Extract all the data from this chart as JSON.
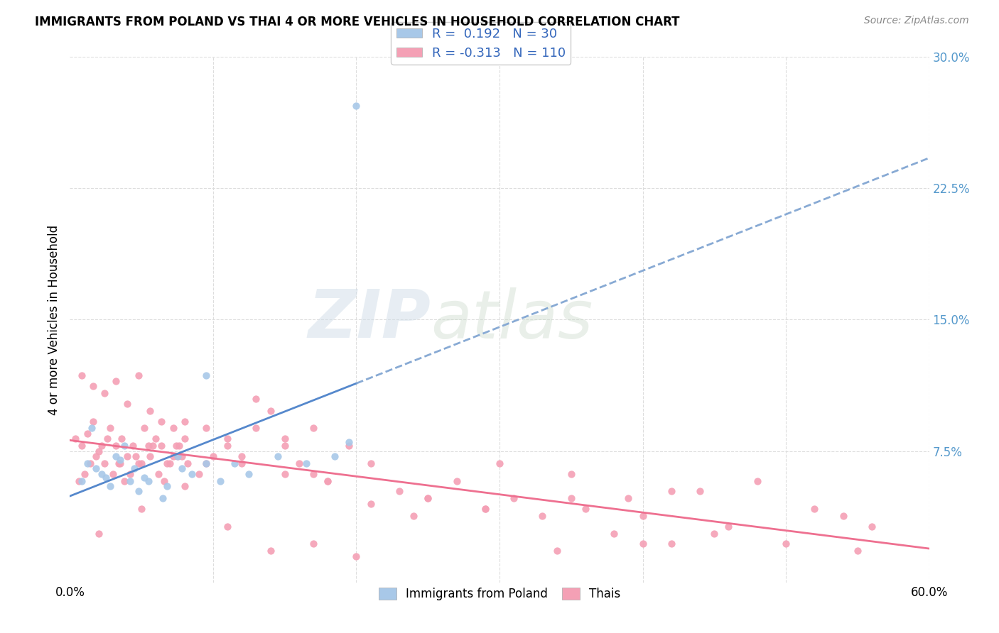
{
  "title": "IMMIGRANTS FROM POLAND VS THAI 4 OR MORE VEHICLES IN HOUSEHOLD CORRELATION CHART",
  "source": "Source: ZipAtlas.com",
  "ylabel": "4 or more Vehicles in Household",
  "xlim": [
    0.0,
    0.6
  ],
  "ylim": [
    0.0,
    0.3
  ],
  "xtick_positions": [
    0.0,
    0.1,
    0.2,
    0.3,
    0.4,
    0.5,
    0.6
  ],
  "xtick_labels": [
    "0.0%",
    "",
    "",
    "",
    "",
    "",
    "60.0%"
  ],
  "yticks_right": [
    0.0,
    0.075,
    0.15,
    0.225,
    0.3
  ],
  "ytick_right_labels": [
    "",
    "7.5%",
    "15.0%",
    "22.5%",
    "30.0%"
  ],
  "poland_R": 0.192,
  "poland_N": 30,
  "thai_R": -0.313,
  "thai_N": 110,
  "poland_color": "#a8c8e8",
  "thai_color": "#f4a0b5",
  "poland_line_color": "#5588cc",
  "thai_line_color": "#ee7090",
  "poland_dash_color": "#88aad4",
  "background_color": "#ffffff",
  "grid_color": "#dddddd",
  "poland_scatter_x": [
    0.008,
    0.012,
    0.018,
    0.022,
    0.028,
    0.032,
    0.038,
    0.042,
    0.048,
    0.015,
    0.025,
    0.035,
    0.045,
    0.055,
    0.065,
    0.075,
    0.085,
    0.095,
    0.105,
    0.115,
    0.125,
    0.145,
    0.165,
    0.185,
    0.195,
    0.052,
    0.068,
    0.078,
    0.095,
    0.2
  ],
  "poland_scatter_y": [
    0.058,
    0.068,
    0.065,
    0.062,
    0.055,
    0.072,
    0.078,
    0.058,
    0.052,
    0.088,
    0.06,
    0.07,
    0.065,
    0.058,
    0.048,
    0.072,
    0.062,
    0.068,
    0.058,
    0.068,
    0.062,
    0.072,
    0.068,
    0.072,
    0.08,
    0.06,
    0.055,
    0.065,
    0.118,
    0.272
  ],
  "thai_scatter_x": [
    0.004,
    0.008,
    0.012,
    0.016,
    0.02,
    0.024,
    0.028,
    0.032,
    0.036,
    0.04,
    0.044,
    0.048,
    0.052,
    0.056,
    0.06,
    0.064,
    0.068,
    0.072,
    0.076,
    0.08,
    0.006,
    0.01,
    0.014,
    0.018,
    0.022,
    0.026,
    0.03,
    0.034,
    0.038,
    0.042,
    0.046,
    0.05,
    0.058,
    0.062,
    0.066,
    0.07,
    0.074,
    0.078,
    0.082,
    0.09,
    0.1,
    0.11,
    0.12,
    0.13,
    0.14,
    0.15,
    0.16,
    0.17,
    0.18,
    0.195,
    0.21,
    0.23,
    0.25,
    0.27,
    0.29,
    0.31,
    0.33,
    0.36,
    0.39,
    0.42,
    0.008,
    0.016,
    0.024,
    0.032,
    0.04,
    0.048,
    0.056,
    0.064,
    0.072,
    0.08,
    0.095,
    0.11,
    0.13,
    0.15,
    0.17,
    0.035,
    0.055,
    0.075,
    0.095,
    0.12,
    0.15,
    0.18,
    0.21,
    0.25,
    0.29,
    0.35,
    0.4,
    0.44,
    0.48,
    0.52,
    0.54,
    0.56,
    0.3,
    0.35,
    0.4,
    0.45,
    0.5,
    0.55,
    0.46,
    0.42,
    0.38,
    0.34,
    0.02,
    0.05,
    0.08,
    0.11,
    0.14,
    0.17,
    0.2,
    0.24
  ],
  "thai_scatter_y": [
    0.082,
    0.078,
    0.085,
    0.092,
    0.075,
    0.068,
    0.088,
    0.078,
    0.082,
    0.072,
    0.078,
    0.068,
    0.088,
    0.072,
    0.082,
    0.078,
    0.068,
    0.072,
    0.078,
    0.082,
    0.058,
    0.062,
    0.068,
    0.072,
    0.078,
    0.082,
    0.062,
    0.068,
    0.058,
    0.062,
    0.072,
    0.068,
    0.078,
    0.062,
    0.058,
    0.068,
    0.078,
    0.072,
    0.068,
    0.062,
    0.072,
    0.078,
    0.068,
    0.105,
    0.098,
    0.082,
    0.068,
    0.062,
    0.058,
    0.078,
    0.045,
    0.052,
    0.048,
    0.058,
    0.042,
    0.048,
    0.038,
    0.042,
    0.048,
    0.052,
    0.118,
    0.112,
    0.108,
    0.115,
    0.102,
    0.118,
    0.098,
    0.092,
    0.088,
    0.092,
    0.088,
    0.082,
    0.088,
    0.078,
    0.088,
    0.068,
    0.078,
    0.072,
    0.068,
    0.072,
    0.062,
    0.058,
    0.068,
    0.048,
    0.042,
    0.048,
    0.038,
    0.052,
    0.058,
    0.042,
    0.038,
    0.032,
    0.068,
    0.062,
    0.022,
    0.028,
    0.022,
    0.018,
    0.032,
    0.022,
    0.028,
    0.018,
    0.028,
    0.042,
    0.055,
    0.032,
    0.018,
    0.022,
    0.015,
    0.038
  ]
}
